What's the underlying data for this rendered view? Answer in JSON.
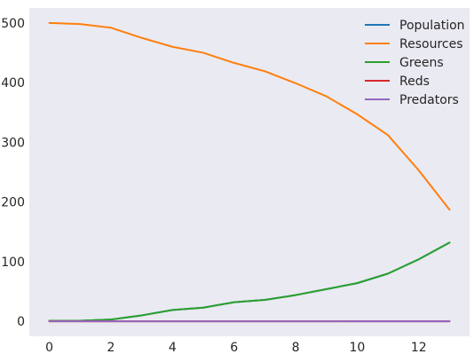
{
  "chart_data": {
    "type": "line",
    "title": "",
    "xlabel": "",
    "ylabel": "",
    "x": [
      0,
      1,
      2,
      3,
      4,
      5,
      6,
      7,
      8,
      9,
      10,
      11,
      12,
      13
    ],
    "xlim": [
      -0.65,
      13.65
    ],
    "ylim": [
      -25,
      525
    ],
    "xticks": [
      0,
      2,
      4,
      6,
      8,
      10,
      12
    ],
    "yticks": [
      0,
      100,
      200,
      300,
      400,
      500
    ],
    "grid": false,
    "background": "#eaeaf2",
    "legend_position": "top-right",
    "series": [
      {
        "name": "Population",
        "color": "#1f77b4",
        "values": [
          1,
          1,
          3,
          10,
          19,
          23,
          32,
          36,
          44,
          54,
          64,
          80,
          104,
          132
        ]
      },
      {
        "name": "Resources",
        "color": "#ff7f0e",
        "values": [
          500,
          498,
          492,
          475,
          460,
          450,
          433,
          419,
          399,
          377,
          347,
          312,
          253,
          187
        ]
      },
      {
        "name": "Greens",
        "color": "#2ca02c",
        "values": [
          1,
          1,
          3,
          10,
          19,
          23,
          32,
          36,
          44,
          54,
          64,
          80,
          104,
          132
        ]
      },
      {
        "name": "Reds",
        "color": "#d62728",
        "values": [
          0,
          0,
          0,
          0,
          0,
          0,
          0,
          0,
          0,
          0,
          0,
          0,
          0,
          0
        ]
      },
      {
        "name": "Predators",
        "color": "#9467bd",
        "values": [
          0,
          0,
          0,
          0,
          0,
          0,
          0,
          0,
          0,
          0,
          0,
          0,
          0,
          0
        ]
      }
    ]
  }
}
